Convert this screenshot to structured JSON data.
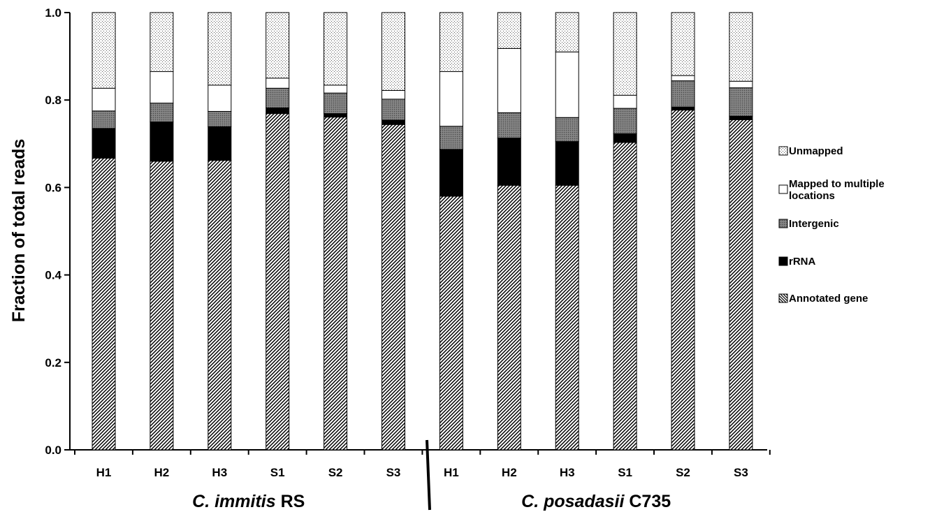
{
  "chart_data": {
    "type": "bar",
    "stacked": true,
    "ylabel": "Fraction of total reads",
    "ylim": [
      0,
      1.0
    ],
    "yticks": [
      "0.0",
      "0.2",
      "0.4",
      "0.6",
      "0.8",
      "1.0"
    ],
    "categories": [
      "H1",
      "H2",
      "H3",
      "S1",
      "S2",
      "S3",
      "H1",
      "H2",
      "H3",
      "S1",
      "S2",
      "S3"
    ],
    "groups": [
      {
        "italic": "C. immitis",
        "plain": " RS",
        "categories": [
          "H1",
          "H2",
          "H3",
          "S1",
          "S2",
          "S3"
        ]
      },
      {
        "italic": "C. posadasii",
        "plain": " C735",
        "categories": [
          "H1",
          "H2",
          "H3",
          "S1",
          "S2",
          "S3"
        ]
      }
    ],
    "series": [
      {
        "name": "Annotated gene",
        "pattern": "hatch",
        "values": [
          0.667,
          0.66,
          0.662,
          0.769,
          0.761,
          0.744,
          0.58,
          0.605,
          0.605,
          0.703,
          0.777,
          0.755
        ]
      },
      {
        "name": "rRNA",
        "pattern": "black",
        "values": [
          0.068,
          0.09,
          0.077,
          0.013,
          0.008,
          0.01,
          0.107,
          0.108,
          0.1,
          0.02,
          0.007,
          0.008
        ]
      },
      {
        "name": "Intergenic",
        "pattern": "gray",
        "values": [
          0.04,
          0.043,
          0.035,
          0.045,
          0.047,
          0.048,
          0.053,
          0.058,
          0.055,
          0.058,
          0.06,
          0.065
        ]
      },
      {
        "name": "Mapped to multiple locations",
        "pattern": "white",
        "values": [
          0.052,
          0.072,
          0.06,
          0.023,
          0.018,
          0.02,
          0.125,
          0.147,
          0.15,
          0.03,
          0.012,
          0.015
        ]
      },
      {
        "name": "Unmapped",
        "pattern": "dots",
        "values": [
          0.173,
          0.135,
          0.166,
          0.15,
          0.166,
          0.178,
          0.135,
          0.082,
          0.09,
          0.189,
          0.144,
          0.157
        ]
      }
    ],
    "legend": {
      "position": "right",
      "entries": [
        {
          "label": "Unmapped",
          "pattern": "dots"
        },
        {
          "label": "Mapped to multiple\nlocations",
          "pattern": "white"
        },
        {
          "label": "Intergenic",
          "pattern": "gray"
        },
        {
          "label": "rRNA",
          "pattern": "black"
        },
        {
          "label": "Annotated gene",
          "pattern": "hatch"
        }
      ]
    },
    "grid": false
  }
}
